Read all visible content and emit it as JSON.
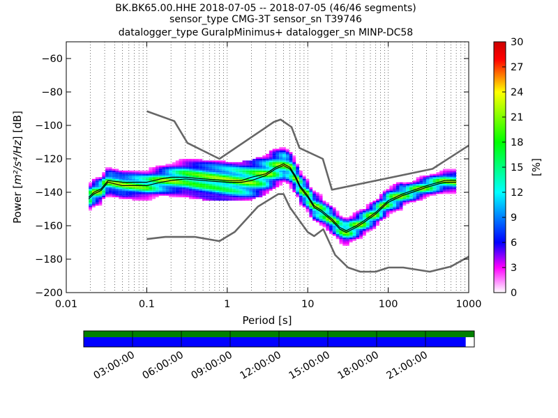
{
  "chart_data": {
    "type": "heatmap",
    "title_lines": [
      "BK.BK65.00.HHE   2018-07-05 -- 2018-07-05  (46/46 segments)",
      "sensor_type CMG-3T sensor_sn T39746",
      "datalogger_type GuralpMinimus+ datalogger_sn MINP-DC58"
    ],
    "xlabel": "Period [s]",
    "ylabel_prefix": "Power [",
    "ylabel_math": "m²/s⁴/Hz",
    "ylabel_suffix": "] [dB]",
    "x_scale": "log",
    "xlim": [
      0.01,
      1000
    ],
    "ylim": [
      -200,
      -50
    ],
    "x_ticks": [
      0.01,
      0.1,
      1,
      10,
      100,
      1000
    ],
    "x_tick_labels": [
      "0.01",
      "0.1",
      "1",
      "10",
      "100",
      "1000"
    ],
    "y_ticks": [
      -200,
      -180,
      -160,
      -140,
      -120,
      -100,
      -80,
      -60
    ],
    "y_tick_labels": [
      "−200",
      "−180",
      "−160",
      "−140",
      "−120",
      "−100",
      "−80",
      "−60"
    ],
    "grid": "dotted vertical lines at log-decade subdivisions",
    "colorbar": {
      "label": "[%]",
      "range": [
        0,
        30
      ],
      "ticks": [
        0,
        3,
        6,
        9,
        12,
        15,
        18,
        21,
        24,
        27,
        30
      ],
      "tick_labels": [
        "0",
        "3",
        "6",
        "9",
        "12",
        "15",
        "18",
        "21",
        "24",
        "27",
        "30"
      ],
      "colors": [
        "#ffffff",
        "#ff00ff",
        "#0000ff",
        "#00ffff",
        "#00ff00",
        "#ffff00",
        "#ff0000",
        "#cc0000"
      ]
    },
    "mode_curve": [
      [
        0.019,
        -144
      ],
      [
        0.022,
        -141
      ],
      [
        0.027,
        -139
      ],
      [
        0.033,
        -134
      ],
      [
        0.05,
        -136
      ],
      [
        0.1,
        -136
      ],
      [
        0.15,
        -134
      ],
      [
        0.2,
        -133
      ],
      [
        0.3,
        -132
      ],
      [
        0.5,
        -133
      ],
      [
        1,
        -134
      ],
      [
        1.5,
        -134
      ],
      [
        2,
        -133
      ],
      [
        3,
        -130
      ],
      [
        4,
        -126
      ],
      [
        5,
        -124
      ],
      [
        6,
        -126
      ],
      [
        7,
        -131
      ],
      [
        8,
        -137
      ],
      [
        10,
        -143
      ],
      [
        12,
        -149
      ],
      [
        15,
        -152
      ],
      [
        20,
        -157
      ],
      [
        25,
        -162
      ],
      [
        30,
        -164
      ],
      [
        40,
        -161
      ],
      [
        50,
        -158
      ],
      [
        70,
        -153
      ],
      [
        100,
        -146
      ],
      [
        150,
        -142
      ],
      [
        200,
        -140
      ],
      [
        300,
        -137
      ],
      [
        500,
        -134
      ],
      [
        700,
        -134
      ]
    ],
    "mean_curve": [
      [
        0.019,
        -143
      ],
      [
        0.022,
        -140
      ],
      [
        0.027,
        -138
      ],
      [
        0.033,
        -133
      ],
      [
        0.05,
        -134
      ],
      [
        0.1,
        -134
      ],
      [
        0.15,
        -132
      ],
      [
        0.2,
        -131
      ],
      [
        0.3,
        -131
      ],
      [
        0.5,
        -132
      ],
      [
        1,
        -133
      ],
      [
        1.5,
        -133
      ],
      [
        2,
        -131
      ],
      [
        3,
        -129
      ],
      [
        4,
        -125
      ],
      [
        5,
        -123
      ],
      [
        6,
        -125
      ],
      [
        7,
        -130
      ],
      [
        8,
        -136
      ],
      [
        10,
        -142
      ],
      [
        12,
        -148
      ],
      [
        15,
        -151
      ],
      [
        20,
        -156
      ],
      [
        25,
        -161
      ],
      [
        30,
        -163
      ],
      [
        40,
        -160
      ],
      [
        50,
        -157
      ],
      [
        70,
        -152
      ],
      [
        100,
        -145
      ],
      [
        150,
        -141
      ],
      [
        200,
        -139
      ],
      [
        300,
        -136
      ],
      [
        500,
        -133
      ],
      [
        700,
        -133
      ]
    ],
    "nhnm": [
      [
        0.1,
        -91.5
      ],
      [
        0.22,
        -97.4
      ],
      [
        0.32,
        -110.5
      ],
      [
        0.8,
        -120
      ],
      [
        3.8,
        -97.9
      ],
      [
        4.6,
        -96.5
      ],
      [
        6.3,
        -101
      ],
      [
        7.9,
        -113.5
      ],
      [
        15.4,
        -120
      ],
      [
        20,
        -138.5
      ],
      [
        354.8,
        -126
      ],
      [
        1000,
        -112
      ]
    ],
    "nlnm": [
      [
        0.1,
        -168
      ],
      [
        0.17,
        -166.7
      ],
      [
        0.4,
        -166.7
      ],
      [
        0.8,
        -169.2
      ],
      [
        1.24,
        -163.7
      ],
      [
        2.4,
        -148.6
      ],
      [
        4.3,
        -141.1
      ],
      [
        5,
        -141.1
      ],
      [
        6,
        -149
      ],
      [
        10,
        -163.8
      ],
      [
        12,
        -166.2
      ],
      [
        15.6,
        -162.1
      ],
      [
        21.9,
        -177.5
      ],
      [
        31.6,
        -185
      ],
      [
        45,
        -187.5
      ],
      [
        70,
        -187.5
      ],
      [
        101,
        -185
      ],
      [
        154,
        -185
      ],
      [
        328,
        -187.5
      ],
      [
        600,
        -184.4
      ],
      [
        1000,
        -178.5
      ]
    ],
    "timeline": {
      "labels": [
        "03:00:00",
        "06:00:00",
        "09:00:00",
        "12:00:00",
        "15:00:00",
        "18:00:00",
        "21:00:00"
      ],
      "tick_hours": [
        3,
        6,
        9,
        12,
        15,
        18,
        21
      ],
      "data_coverage_fraction": 1.0,
      "psd_coverage_fraction": 0.978,
      "data_color": "#008000",
      "psd_color": "#0000ff"
    }
  }
}
